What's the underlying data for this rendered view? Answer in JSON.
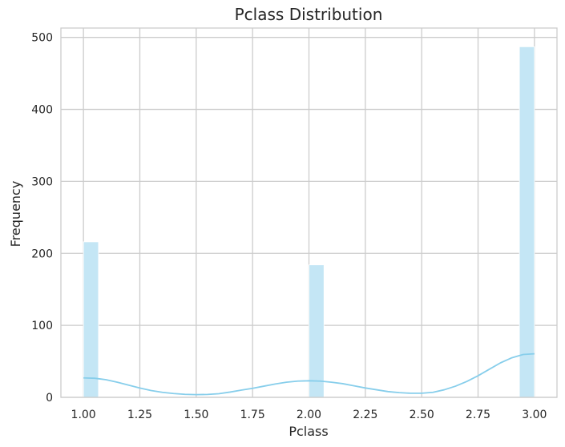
{
  "chart_data": {
    "type": "bar",
    "title": "Pclass Distribution",
    "xlabel": "Pclass",
    "ylabel": "Frequency",
    "xlim": [
      0.9,
      3.1
    ],
    "ylim": [
      0,
      513
    ],
    "grid": true,
    "bin_width": 0.0667,
    "bins": [
      {
        "x0": 1.0,
        "x1": 1.0667,
        "value": 216
      },
      {
        "x0": 1.9333,
        "x1": 2.0,
        "value": 0
      },
      {
        "x0": 2.0,
        "x1": 2.0667,
        "value": 184
      },
      {
        "x0": 2.9333,
        "x1": 3.0,
        "value": 487
      }
    ],
    "x_ticks": [
      {
        "value": 1.0,
        "label": "1.00"
      },
      {
        "value": 1.25,
        "label": "1.25"
      },
      {
        "value": 1.5,
        "label": "1.50"
      },
      {
        "value": 1.75,
        "label": "1.75"
      },
      {
        "value": 2.0,
        "label": "2.00"
      },
      {
        "value": 2.25,
        "label": "2.25"
      },
      {
        "value": 2.5,
        "label": "2.50"
      },
      {
        "value": 2.75,
        "label": "2.75"
      },
      {
        "value": 3.0,
        "label": "3.00"
      }
    ],
    "y_ticks": [
      {
        "value": 0,
        "label": "0"
      },
      {
        "value": 100,
        "label": "100"
      },
      {
        "value": 200,
        "label": "200"
      },
      {
        "value": 300,
        "label": "300"
      },
      {
        "value": 400,
        "label": "400"
      },
      {
        "value": 500,
        "label": "500"
      }
    ],
    "kde": {
      "x": [
        1.0,
        1.05,
        1.1,
        1.15,
        1.2,
        1.25,
        1.3,
        1.35,
        1.4,
        1.45,
        1.5,
        1.55,
        1.6,
        1.65,
        1.7,
        1.75,
        1.8,
        1.85,
        1.9,
        1.95,
        2.0,
        2.05,
        2.1,
        2.15,
        2.2,
        2.25,
        2.3,
        2.35,
        2.4,
        2.45,
        2.5,
        2.55,
        2.6,
        2.65,
        2.7,
        2.75,
        2.8,
        2.85,
        2.9,
        2.95,
        3.0
      ],
      "y": [
        27,
        26.5,
        24.5,
        21,
        17,
        13,
        9.5,
        7,
        5.3,
        4.2,
        3.8,
        4,
        5,
        7.3,
        10,
        12.5,
        15.5,
        18.5,
        21,
        22.5,
        23,
        22.5,
        21,
        19,
        16,
        13,
        10.5,
        8,
        6.5,
        5.7,
        5.7,
        7,
        10.5,
        15.5,
        22,
        30,
        39,
        48,
        55,
        59.5,
        60.5
      ]
    },
    "colors": {
      "bar_fill": "#c4e6f5",
      "kde_line": "#87ceeb",
      "grid": "#cccccc",
      "text": "#262626"
    }
  }
}
